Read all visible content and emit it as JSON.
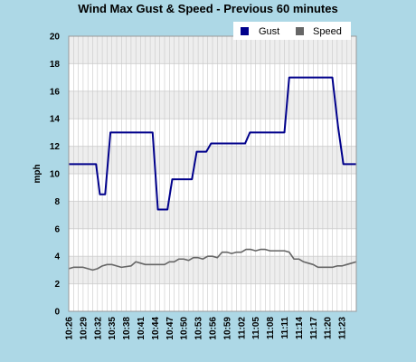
{
  "chart_data": {
    "type": "line",
    "title": "Wind Max Gust & Speed - Previous 60 minutes",
    "xlabel": "",
    "ylabel": "mph",
    "ylim": [
      0,
      20
    ],
    "yticks": [
      0,
      2,
      4,
      6,
      8,
      10,
      12,
      14,
      16,
      18,
      20
    ],
    "xlim": [
      0,
      60
    ],
    "x_tick_labels": [
      "10:26",
      "10:29",
      "10:32",
      "10:35",
      "10:38",
      "10:41",
      "10:44",
      "10:47",
      "10:50",
      "10:53",
      "10:56",
      "10:59",
      "11:02",
      "11:05",
      "11:08",
      "11:11",
      "11:14",
      "11:17",
      "11:20",
      "11:23"
    ],
    "grid": true,
    "legend_position": "top-right",
    "series": [
      {
        "name": "Gust",
        "color": "#00008b",
        "points": [
          [
            0,
            10.7
          ],
          [
            5.7,
            10.7
          ],
          [
            6.5,
            8.5
          ],
          [
            7.6,
            8.5
          ],
          [
            8.7,
            13
          ],
          [
            17.5,
            13
          ],
          [
            18.6,
            7.4
          ],
          [
            20.6,
            7.4
          ],
          [
            21.6,
            9.6
          ],
          [
            25.7,
            9.6
          ],
          [
            26.7,
            11.6
          ],
          [
            28.7,
            11.6
          ],
          [
            29.7,
            12.2
          ],
          [
            36.8,
            12.2
          ],
          [
            37.8,
            13
          ],
          [
            45,
            13
          ],
          [
            46,
            17
          ],
          [
            55,
            17
          ],
          [
            56.2,
            13.4
          ],
          [
            57.3,
            10.7
          ],
          [
            60,
            10.7
          ]
        ]
      },
      {
        "name": "Speed",
        "color": "#666666",
        "points": [
          [
            0,
            3.1
          ],
          [
            1,
            3.2
          ],
          [
            3,
            3.2
          ],
          [
            4,
            3.1
          ],
          [
            5,
            3
          ],
          [
            6,
            3.1
          ],
          [
            7,
            3.3
          ],
          [
            8,
            3.4
          ],
          [
            9,
            3.4
          ],
          [
            10,
            3.3
          ],
          [
            11,
            3.2
          ],
          [
            13,
            3.3
          ],
          [
            14,
            3.6
          ],
          [
            15,
            3.5
          ],
          [
            16,
            3.4
          ],
          [
            20,
            3.4
          ],
          [
            21,
            3.6
          ],
          [
            22,
            3.6
          ],
          [
            23,
            3.8
          ],
          [
            24,
            3.8
          ],
          [
            25,
            3.7
          ],
          [
            26,
            3.9
          ],
          [
            27,
            3.9
          ],
          [
            28,
            3.8
          ],
          [
            29,
            4
          ],
          [
            30,
            4
          ],
          [
            31,
            3.9
          ],
          [
            32,
            4.3
          ],
          [
            33,
            4.3
          ],
          [
            34,
            4.2
          ],
          [
            35,
            4.3
          ],
          [
            36,
            4.3
          ],
          [
            37,
            4.5
          ],
          [
            38,
            4.5
          ],
          [
            39,
            4.4
          ],
          [
            40,
            4.5
          ],
          [
            41,
            4.5
          ],
          [
            42,
            4.4
          ],
          [
            45,
            4.4
          ],
          [
            46,
            4.3
          ],
          [
            47,
            3.8
          ],
          [
            48,
            3.8
          ],
          [
            49,
            3.6
          ],
          [
            50,
            3.5
          ],
          [
            51,
            3.4
          ],
          [
            52,
            3.2
          ],
          [
            53,
            3.2
          ],
          [
            54,
            3.2
          ],
          [
            55,
            3.2
          ],
          [
            56,
            3.3
          ],
          [
            57,
            3.3
          ],
          [
            58,
            3.4
          ],
          [
            59,
            3.5
          ],
          [
            60,
            3.6
          ]
        ]
      }
    ]
  }
}
